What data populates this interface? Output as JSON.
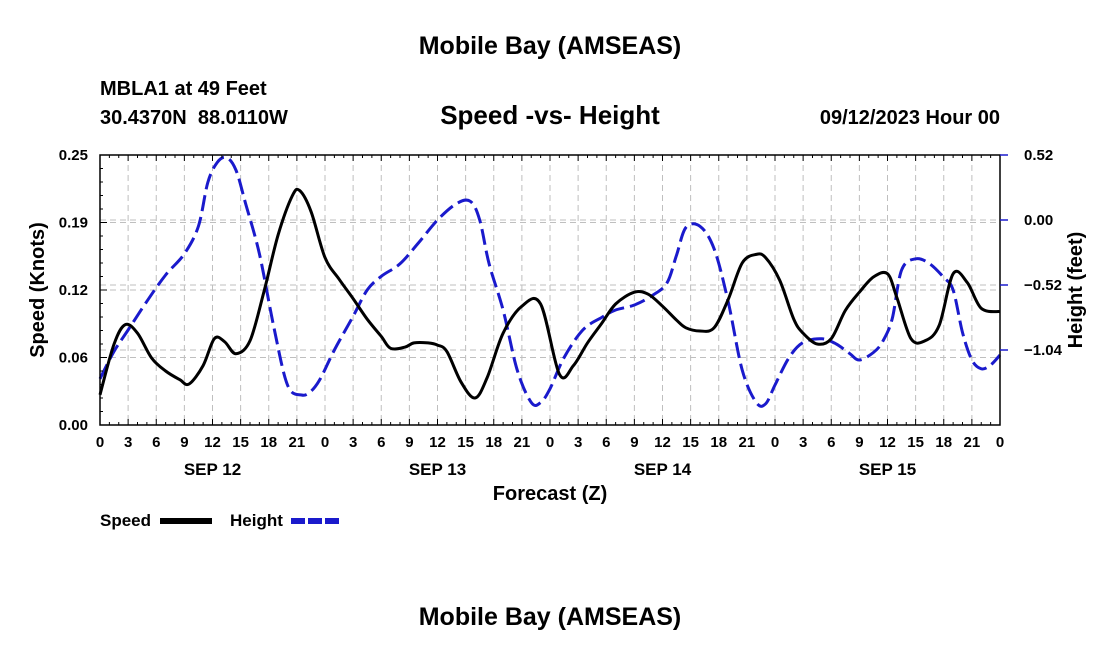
{
  "header": {
    "title": "Mobile Bay (AMSEAS)",
    "station": "MBLA1 at 49 Feet",
    "coords": "30.4370N  88.0110W",
    "subtitle": "Speed -vs- Height",
    "datetime": "09/12/2023 Hour 00",
    "footer_title": "Mobile Bay (AMSEAS)"
  },
  "legend": {
    "speed_label": "Speed",
    "height_label": "Height"
  },
  "colors": {
    "speed": "#000000",
    "height": "#1a1acc",
    "grid": "#bfbfbf"
  },
  "chart_data": {
    "type": "line",
    "title": "Speed -vs- Height",
    "xlabel": "Forecast (Z)",
    "ylabel": "Speed (Knots)",
    "y2label": "Height (feet)",
    "xlim": [
      0,
      96
    ],
    "ylim": [
      0,
      0.25
    ],
    "y2lim": [
      -1.64,
      0.52
    ],
    "x_tick_labels": [
      "0",
      "3",
      "6",
      "9",
      "12",
      "15",
      "18",
      "21",
      "0",
      "3",
      "6",
      "9",
      "12",
      "15",
      "18",
      "21",
      "0",
      "3",
      "6",
      "9",
      "12",
      "15",
      "18",
      "21",
      "0",
      "3",
      "6",
      "9",
      "12",
      "15",
      "18",
      "21",
      "0"
    ],
    "day_labels": [
      {
        "label": "SEP 12",
        "hour": 12
      },
      {
        "label": "SEP 13",
        "hour": 36
      },
      {
        "label": "SEP 14",
        "hour": 60
      },
      {
        "label": "SEP 15",
        "hour": 84
      }
    ],
    "y_ticks": [
      {
        "value": 0,
        "label": "0.00"
      },
      {
        "value": 0.0625,
        "label": "0.06"
      },
      {
        "value": 0.125,
        "label": "0.12"
      },
      {
        "value": 0.1875,
        "label": "0.19"
      },
      {
        "value": 0.25,
        "label": "0.25"
      }
    ],
    "y2_ticks": [
      {
        "value": 0.52,
        "label": "0.52"
      },
      {
        "value": 0.0,
        "label": "0.00"
      },
      {
        "value": -0.52,
        "label": "−0.52"
      },
      {
        "value": -1.04,
        "label": "−1.04"
      }
    ],
    "series": [
      {
        "name": "Speed",
        "axis": "left",
        "x": [
          0,
          1.5,
          2.7,
          4,
          5.5,
          7,
          8.5,
          9.5,
          11,
          12.2,
          13.3,
          14.5,
          16,
          17.5,
          19,
          20.5,
          21.3,
          22.5,
          24,
          25.5,
          27,
          28.5,
          30,
          31,
          32.5,
          33.5,
          35,
          36,
          37,
          38.5,
          40,
          41.3,
          43,
          45,
          47,
          49,
          50.5,
          52,
          53.5,
          55,
          57,
          58.5,
          60,
          61.5,
          62.5,
          64,
          65.5,
          67,
          68.5,
          70,
          71,
          72.5,
          74,
          75,
          76.5,
          78,
          79.5,
          81,
          82.5,
          84,
          85,
          86.5,
          88,
          89.5,
          91,
          92.5,
          94,
          96
        ],
        "values": [
          0.028,
          0.075,
          0.093,
          0.085,
          0.062,
          0.05,
          0.042,
          0.038,
          0.055,
          0.08,
          0.077,
          0.066,
          0.078,
          0.124,
          0.176,
          0.212,
          0.217,
          0.198,
          0.155,
          0.135,
          0.117,
          0.098,
          0.082,
          0.071,
          0.072,
          0.076,
          0.076,
          0.074,
          0.068,
          0.04,
          0.025,
          0.044,
          0.085,
          0.11,
          0.112,
          0.047,
          0.055,
          0.076,
          0.094,
          0.112,
          0.123,
          0.121,
          0.11,
          0.097,
          0.09,
          0.087,
          0.09,
          0.116,
          0.15,
          0.158,
          0.155,
          0.134,
          0.098,
          0.085,
          0.075,
          0.08,
          0.106,
          0.123,
          0.137,
          0.14,
          0.118,
          0.08,
          0.078,
          0.092,
          0.14,
          0.132,
          0.108,
          0.105
        ],
        "style": "solid"
      },
      {
        "name": "Height",
        "axis": "right",
        "x": [
          0,
          1.5,
          3,
          5,
          7,
          9,
          10.5,
          11.5,
          12.5,
          13.5,
          14.5,
          15.5,
          17,
          18.5,
          20,
          21.5,
          22.5,
          23.5,
          25,
          27,
          28.5,
          30,
          32,
          34,
          36,
          38,
          39.5,
          40.5,
          41.5,
          43,
          44.5,
          46,
          47,
          48,
          49.5,
          51.5,
          53.5,
          55,
          57,
          59,
          60.5,
          61.5,
          62.5,
          64,
          65.5,
          67,
          68.5,
          70,
          71,
          72,
          73.5,
          75,
          77,
          78.5,
          80,
          81,
          82.5,
          83.5,
          84.5,
          85.5,
          87,
          88.5,
          90,
          91,
          92,
          93,
          94,
          95,
          96
        ],
        "values": [
          -1.27,
          -1.05,
          -0.88,
          -0.65,
          -0.44,
          -0.27,
          -0.05,
          0.3,
          0.46,
          0.5,
          0.4,
          0.14,
          -0.27,
          -0.84,
          -1.32,
          -1.4,
          -1.37,
          -1.27,
          -1.04,
          -0.77,
          -0.56,
          -0.45,
          -0.35,
          -0.18,
          0.0,
          0.13,
          0.15,
          0.0,
          -0.35,
          -0.72,
          -1.2,
          -1.46,
          -1.46,
          -1.35,
          -1.1,
          -0.88,
          -0.78,
          -0.72,
          -0.68,
          -0.6,
          -0.5,
          -0.28,
          -0.06,
          -0.05,
          -0.23,
          -0.65,
          -1.2,
          -1.46,
          -1.47,
          -1.32,
          -1.1,
          -0.98,
          -0.95,
          -0.99,
          -1.07,
          -1.12,
          -1.06,
          -0.97,
          -0.79,
          -0.4,
          -0.31,
          -0.35,
          -0.46,
          -0.56,
          -0.9,
          -1.12,
          -1.19,
          -1.16,
          -1.08
        ],
        "style": "dashed"
      }
    ]
  }
}
